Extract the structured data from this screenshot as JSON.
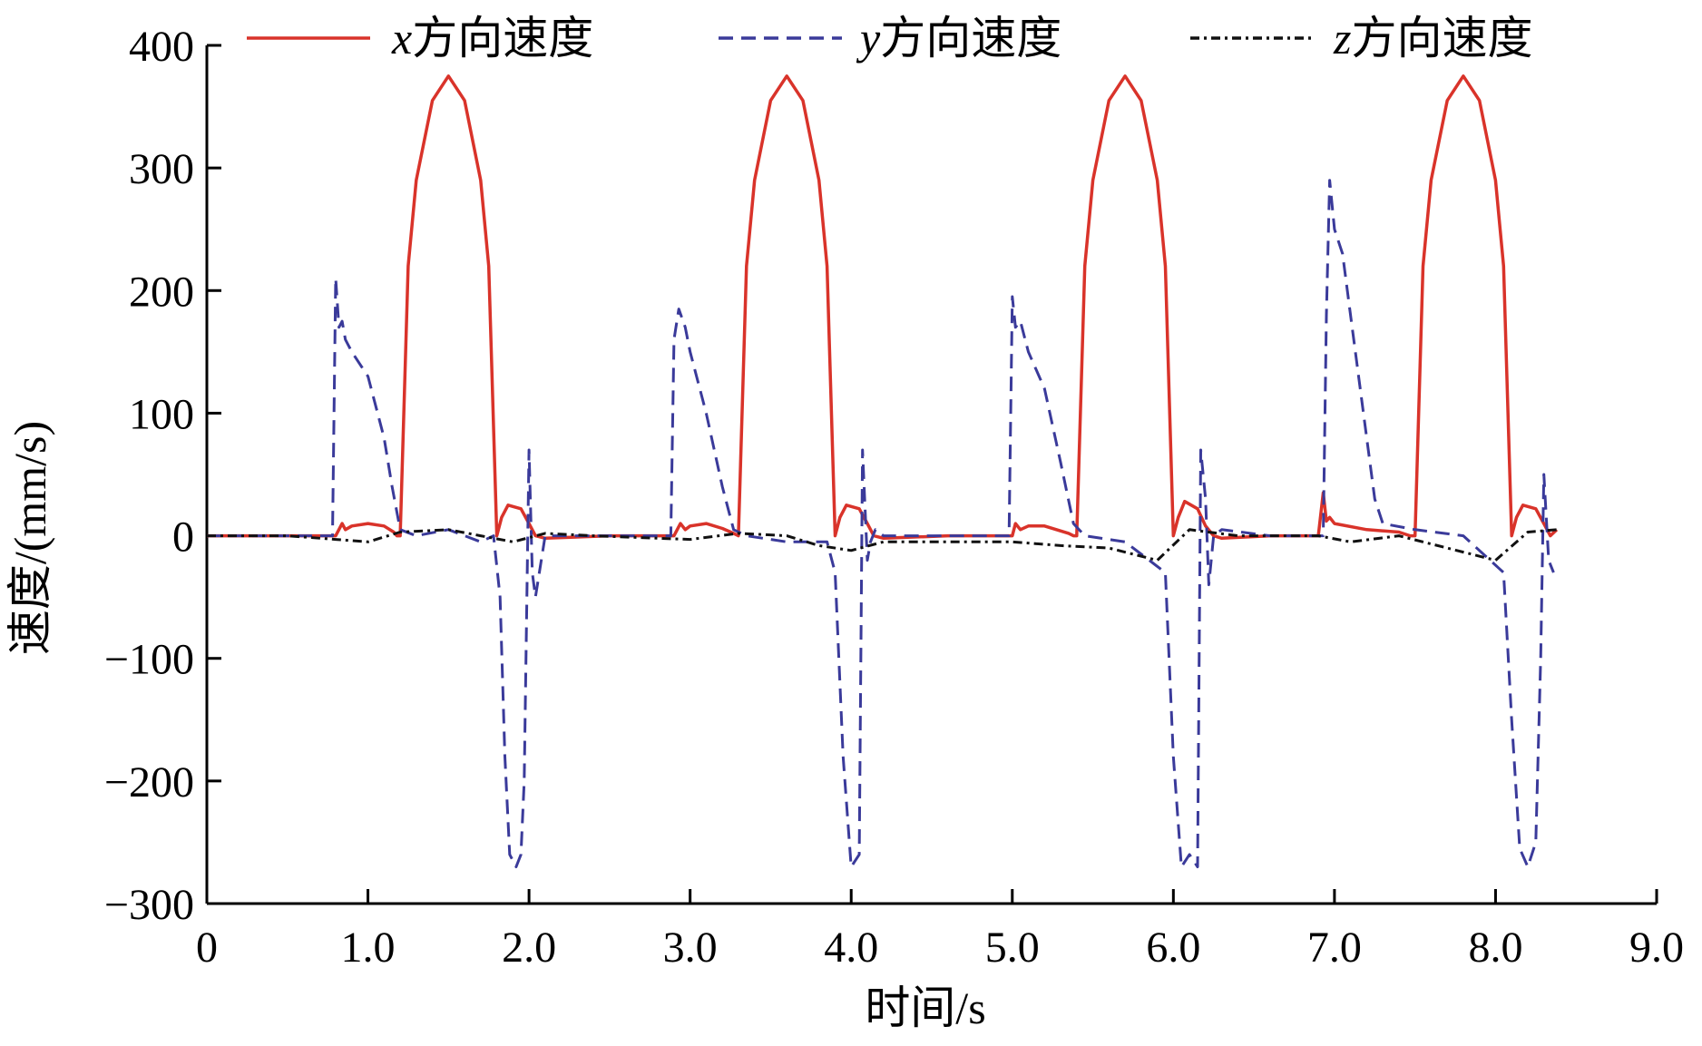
{
  "chart_data": {
    "type": "line",
    "title": "",
    "xlabel": "时间/s",
    "ylabel": "速度/(mm/s)",
    "xlim": [
      0,
      9.0
    ],
    "ylim": [
      -300,
      400
    ],
    "x_ticks": [
      0,
      1.0,
      2.0,
      3.0,
      4.0,
      5.0,
      6.0,
      7.0,
      8.0,
      9.0
    ],
    "x_tick_labels": [
      "0",
      "1.0",
      "2.0",
      "3.0",
      "4.0",
      "5.0",
      "6.0",
      "7.0",
      "8.0",
      "9.0"
    ],
    "y_ticks": [
      400,
      300,
      200,
      100,
      0,
      -100,
      -200,
      -300
    ],
    "y_tick_labels": [
      "400",
      "300",
      "200",
      "100",
      "0",
      "−100",
      "−200",
      "−300"
    ],
    "grid": false,
    "legend_position": "top",
    "series": [
      {
        "name": "x方向速度",
        "name_var": "x",
        "name_rest": "方向速度",
        "color": "#d9332a",
        "style": "solid",
        "x": [
          0,
          0.8,
          0.84,
          0.86,
          0.9,
          1.0,
          1.1,
          1.16,
          1.18,
          1.2,
          1.25,
          1.3,
          1.4,
          1.5,
          1.6,
          1.7,
          1.75,
          1.8,
          1.83,
          1.87,
          1.95,
          2.0,
          2.04,
          2.1,
          2.5,
          2.9,
          2.94,
          2.97,
          3.0,
          3.1,
          3.2,
          3.27,
          3.3,
          3.35,
          3.4,
          3.5,
          3.6,
          3.7,
          3.8,
          3.85,
          3.9,
          3.93,
          3.97,
          4.05,
          4.1,
          4.14,
          4.2,
          4.6,
          5.0,
          5.02,
          5.05,
          5.1,
          5.2,
          5.35,
          5.38,
          5.4,
          5.45,
          5.5,
          5.6,
          5.7,
          5.8,
          5.9,
          5.95,
          6.0,
          6.03,
          6.07,
          6.15,
          6.2,
          6.25,
          6.3,
          6.6,
          6.9,
          6.93,
          6.95,
          6.97,
          7.0,
          7.2,
          7.4,
          7.47,
          7.5,
          7.55,
          7.6,
          7.7,
          7.8,
          7.9,
          8.0,
          8.05,
          8.1,
          8.13,
          8.17,
          8.25,
          8.3,
          8.34,
          8.38
        ],
        "y": [
          0,
          0,
          10,
          5,
          8,
          10,
          8,
          3,
          0,
          0,
          220,
          290,
          355,
          375,
          355,
          290,
          220,
          0,
          15,
          25,
          22,
          10,
          0,
          -2,
          0,
          0,
          10,
          5,
          8,
          10,
          6,
          2,
          0,
          220,
          290,
          355,
          375,
          355,
          290,
          220,
          0,
          15,
          25,
          22,
          10,
          0,
          -2,
          0,
          0,
          10,
          5,
          8,
          8,
          2,
          0,
          0,
          220,
          290,
          355,
          375,
          355,
          290,
          220,
          0,
          15,
          28,
          22,
          8,
          0,
          -2,
          0,
          0,
          35,
          12,
          15,
          10,
          5,
          3,
          0,
          0,
          220,
          290,
          355,
          375,
          355,
          290,
          220,
          0,
          15,
          25,
          22,
          10,
          0,
          5
        ]
      },
      {
        "name": "y方向速度",
        "name_var": "y",
        "name_rest": "方向速度",
        "color": "#3a3a9a",
        "style": "dashed",
        "x": [
          0,
          0.5,
          0.78,
          0.8,
          0.82,
          0.84,
          0.86,
          0.9,
          1.0,
          1.1,
          1.15,
          1.2,
          1.3,
          1.5,
          1.7,
          1.78,
          1.82,
          1.85,
          1.88,
          1.92,
          1.95,
          1.97,
          2.0,
          2.02,
          2.04,
          2.1,
          2.5,
          2.88,
          2.9,
          2.93,
          2.97,
          3.0,
          3.1,
          3.2,
          3.27,
          3.35,
          3.6,
          3.85,
          3.9,
          3.95,
          4.0,
          4.05,
          4.07,
          4.1,
          4.12,
          4.15,
          4.2,
          4.6,
          4.98,
          5.0,
          5.02,
          5.05,
          5.1,
          5.2,
          5.3,
          5.38,
          5.45,
          5.7,
          5.95,
          6.0,
          6.05,
          6.1,
          6.15,
          6.17,
          6.2,
          6.22,
          6.25,
          6.3,
          6.6,
          6.93,
          6.95,
          6.97,
          7.0,
          7.05,
          7.1,
          7.2,
          7.25,
          7.3,
          7.5,
          7.8,
          8.05,
          8.1,
          8.15,
          8.2,
          8.25,
          8.28,
          8.3,
          8.33,
          8.36
        ],
        "y": [
          0,
          0,
          0,
          210,
          170,
          175,
          160,
          150,
          130,
          80,
          40,
          5,
          0,
          5,
          -5,
          0,
          -50,
          -180,
          -260,
          -270,
          -260,
          -200,
          70,
          -30,
          -50,
          0,
          0,
          0,
          160,
          185,
          170,
          150,
          100,
          40,
          5,
          0,
          -5,
          -5,
          -30,
          -180,
          -270,
          -260,
          70,
          -20,
          -5,
          5,
          0,
          0,
          0,
          195,
          170,
          175,
          150,
          120,
          60,
          10,
          0,
          -5,
          -30,
          -180,
          -270,
          -260,
          -270,
          70,
          30,
          -40,
          0,
          5,
          0,
          0,
          180,
          290,
          250,
          230,
          180,
          80,
          30,
          10,
          5,
          0,
          -30,
          -150,
          -255,
          -270,
          -250,
          -100,
          50,
          -20,
          -30
        ]
      },
      {
        "name": "z方向速度",
        "name_var": "z",
        "name_rest": "方向速度",
        "color": "#111111",
        "style": "dashdot",
        "x": [
          0,
          0.5,
          0.8,
          1.0,
          1.2,
          1.5,
          1.7,
          1.9,
          2.1,
          2.4,
          2.8,
          3.0,
          3.3,
          3.6,
          3.8,
          4.0,
          4.2,
          4.6,
          5.0,
          5.3,
          5.6,
          5.9,
          6.1,
          6.4,
          6.9,
          7.1,
          7.4,
          7.7,
          8.0,
          8.2,
          8.38
        ],
        "y": [
          0,
          0,
          -3,
          -5,
          3,
          5,
          0,
          -5,
          2,
          0,
          -2,
          -3,
          2,
          0,
          -8,
          -12,
          -5,
          -5,
          -5,
          -8,
          -10,
          -20,
          5,
          0,
          0,
          -5,
          0,
          -10,
          -20,
          3,
          5
        ]
      }
    ]
  }
}
